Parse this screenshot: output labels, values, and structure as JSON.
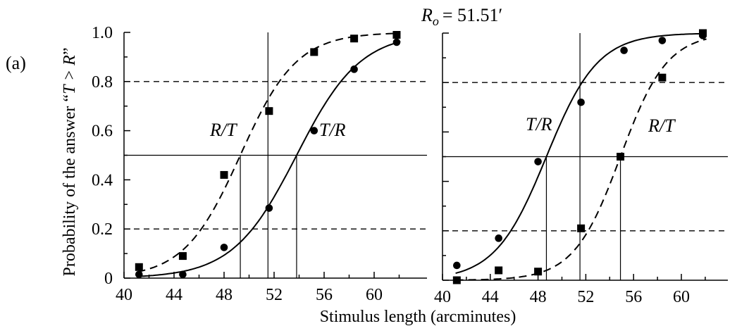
{
  "panel_label": "(a)",
  "top_annotation": {
    "symbol": "R",
    "subscript": "o",
    "value_text": "= 51.51′"
  },
  "ylabel_prefix": "Probability of the answer “",
  "ylabel_math": "T > R",
  "ylabel_suffix": "”",
  "xlabel": "Stimulus length (arcminutes)",
  "chart_data": [
    {
      "type": "scatter",
      "panel": "left",
      "xlim": [
        40,
        64
      ],
      "ylim": [
        0,
        1.0
      ],
      "x_ticks": [
        40,
        44,
        48,
        52,
        56,
        60
      ],
      "y_ticks": [
        0,
        0.2,
        0.4,
        0.6,
        0.8,
        1.0
      ],
      "y_tick_labels": [
        "0",
        "0.2",
        "0.4",
        "0.6",
        "0.8",
        "1.0"
      ],
      "reference_lines": {
        "solid_h": 0.5,
        "dashed_h": [
          0.2,
          0.8
        ],
        "vertical_x": 51.51
      },
      "series": [
        {
          "name": "R/T",
          "marker": "square",
          "line": "dashed",
          "pse": 49.3,
          "slope": 2.25,
          "points": [
            [
              41.2,
              0.045
            ],
            [
              44.7,
              0.09
            ],
            [
              48.0,
              0.42
            ],
            [
              51.6,
              0.68
            ],
            [
              55.2,
              0.92
            ],
            [
              58.4,
              0.975
            ],
            [
              61.8,
              0.99
            ]
          ]
        },
        {
          "name": "T/R",
          "marker": "circle",
          "line": "solid",
          "pse": 53.8,
          "slope": 2.55,
          "points": [
            [
              41.2,
              0.015
            ],
            [
              44.7,
              0.015
            ],
            [
              48.0,
              0.125
            ],
            [
              51.6,
              0.285
            ],
            [
              55.2,
              0.6
            ],
            [
              58.4,
              0.85
            ],
            [
              61.8,
              0.96
            ]
          ]
        }
      ]
    },
    {
      "type": "scatter",
      "panel": "right",
      "xlim": [
        40,
        64
      ],
      "ylim": [
        0,
        1.0
      ],
      "x_ticks": [
        40,
        44,
        48,
        52,
        56,
        60
      ],
      "y_ticks": [
        0,
        0.2,
        0.4,
        0.6,
        0.8,
        1.0
      ],
      "reference_lines": {
        "solid_h": 0.5,
        "dashed_h": [
          0.2,
          0.8
        ],
        "vertical_x": 51.51
      },
      "series": [
        {
          "name": "T/R",
          "marker": "circle",
          "line": "solid",
          "pse": 48.7,
          "slope": 2.15,
          "points": [
            [
              41.2,
              0.06
            ],
            [
              44.7,
              0.17
            ],
            [
              48.0,
              0.48
            ],
            [
              51.6,
              0.72
            ],
            [
              55.2,
              0.93
            ],
            [
              58.4,
              0.97
            ],
            [
              61.8,
              0.99
            ]
          ]
        },
        {
          "name": "R/T",
          "marker": "square",
          "line": "dashed",
          "pse": 54.9,
          "slope": 1.95,
          "points": [
            [
              41.2,
              0.0
            ],
            [
              44.7,
              0.04
            ],
            [
              48.0,
              0.035
            ],
            [
              51.6,
              0.21
            ],
            [
              54.9,
              0.5
            ],
            [
              58.4,
              0.82
            ],
            [
              61.8,
              1.0
            ]
          ]
        }
      ]
    }
  ]
}
